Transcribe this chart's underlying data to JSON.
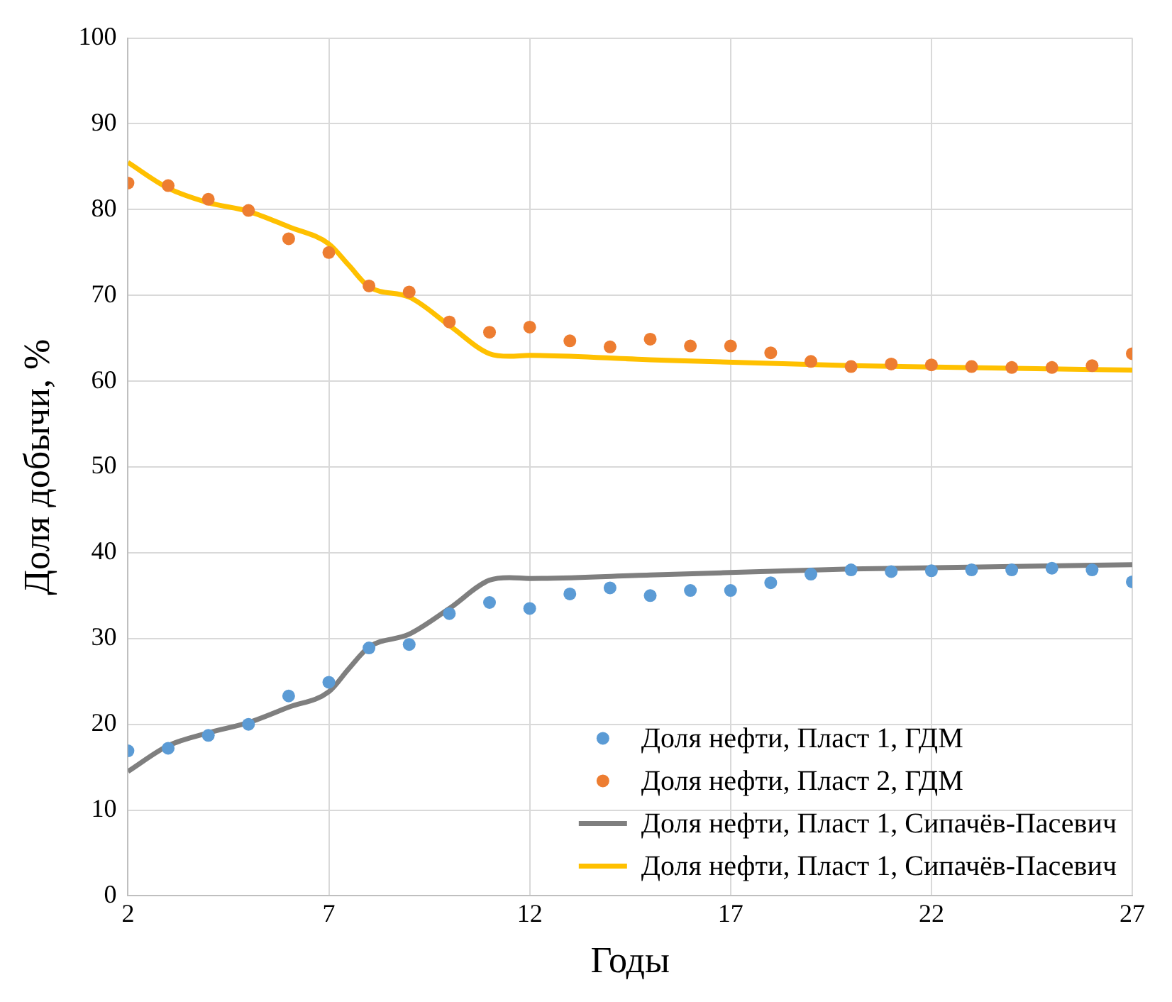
{
  "chart_data": {
    "type": "scatter",
    "xlabel": "Годы",
    "ylabel": "Доля добычи, %",
    "xlim": [
      2,
      27
    ],
    "xticks": [
      2,
      7,
      12,
      17,
      22,
      27
    ],
    "ylim": [
      0,
      100
    ],
    "yticks": [
      0,
      10,
      20,
      30,
      40,
      50,
      60,
      70,
      80,
      90,
      100
    ],
    "grid": true,
    "legend": "bottom right",
    "series": [
      {
        "name": "Доля нефти, Пласт 1, ГДМ",
        "marker": "circle",
        "color": "#5b9bd5",
        "x": [
          2,
          3,
          4,
          5,
          6,
          7,
          8,
          9,
          10,
          11,
          12,
          13,
          14,
          15,
          16,
          17,
          18,
          19,
          20,
          21,
          22,
          23,
          24,
          25,
          26,
          27
        ],
        "values": [
          16.9,
          17.2,
          18.7,
          20.0,
          23.3,
          24.9,
          28.9,
          29.3,
          32.9,
          34.2,
          33.5,
          35.2,
          35.9,
          35.0,
          35.6,
          35.6,
          36.5,
          37.5,
          38.0,
          37.8,
          37.9,
          38.0,
          38.0,
          38.2,
          38.0,
          36.6
        ]
      },
      {
        "name": "Доля нефти, Пласт 2, ГДМ",
        "marker": "circle",
        "color": "#ed7d31",
        "x": [
          2,
          3,
          4,
          5,
          6,
          7,
          8,
          9,
          10,
          11,
          12,
          13,
          14,
          15,
          16,
          17,
          18,
          19,
          20,
          21,
          22,
          23,
          24,
          25,
          26,
          27
        ],
        "values": [
          83.1,
          82.8,
          81.2,
          79.9,
          76.6,
          75.0,
          71.1,
          70.4,
          66.9,
          65.7,
          66.3,
          64.7,
          64.0,
          64.9,
          64.1,
          64.1,
          63.3,
          62.3,
          61.7,
          62.0,
          61.9,
          61.7,
          61.6,
          61.6,
          61.8,
          63.2
        ]
      },
      {
        "name": "Доля нефти, Пласт 1, Сипачёв-Пасевич",
        "type": "line",
        "marker": "none",
        "color": "#7f7f7f",
        "x": [
          2,
          3,
          4,
          5,
          6,
          7,
          7.5,
          8,
          9,
          10,
          11,
          11.5,
          12,
          15,
          20,
          27
        ],
        "values": [
          14.5,
          17.5,
          19.0,
          20.2,
          22.0,
          23.8,
          26.5,
          29.0,
          30.5,
          33.5,
          36.8,
          37.1,
          37.0,
          37.4,
          38.1,
          38.6
        ]
      },
      {
        "name": "Доля нефти, Пласт 1, Сипачёв-Пасевич",
        "type": "line",
        "marker": "none",
        "color": "#ffc000",
        "x": [
          2,
          3,
          4,
          5,
          6,
          7,
          7.5,
          8,
          9,
          10,
          11,
          11.5,
          12,
          15,
          20,
          27
        ],
        "values": [
          85.5,
          82.5,
          80.8,
          79.8,
          78.0,
          76.0,
          73.5,
          71.0,
          69.8,
          66.5,
          63.2,
          62.9,
          63.0,
          62.5,
          61.8,
          61.3
        ]
      }
    ]
  }
}
